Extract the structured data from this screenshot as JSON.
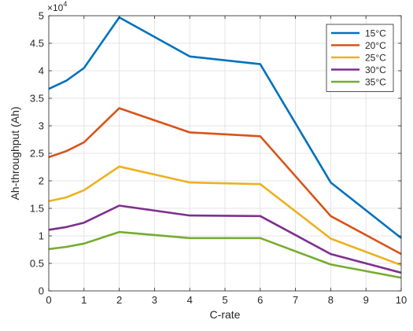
{
  "chart_data": {
    "type": "line",
    "title": "",
    "xlabel": "C-rate",
    "ylabel": "Ah-throughput (Ah)",
    "y_exponent_base": "×10",
    "y_exponent_power": "4",
    "xlim": [
      0,
      10
    ],
    "ylim": [
      0,
      5
    ],
    "x_ticks": [
      0,
      1,
      2,
      3,
      4,
      5,
      6,
      7,
      8,
      9,
      10
    ],
    "y_ticks": [
      0,
      0.5,
      1,
      1.5,
      2,
      2.5,
      3,
      3.5,
      4,
      4.5,
      5
    ],
    "y_tick_labels": [
      "0",
      "0.5",
      "1",
      "1.5",
      "2",
      "2.5",
      "3",
      "3.5",
      "4",
      "4.5",
      "5"
    ],
    "grid": true,
    "box": true,
    "legend_position": "top-right",
    "x": [
      0,
      0.5,
      1,
      2,
      4,
      6,
      8,
      10
    ],
    "series": [
      {
        "name": "15°C",
        "color": "#0072BD",
        "values": [
          3.67,
          3.82,
          4.05,
          4.97,
          4.26,
          4.12,
          1.97,
          0.96
        ]
      },
      {
        "name": "20°C",
        "color": "#D95319",
        "values": [
          2.43,
          2.54,
          2.7,
          3.32,
          2.88,
          2.81,
          1.36,
          0.67
        ]
      },
      {
        "name": "25°C",
        "color": "#EDB120",
        "values": [
          1.63,
          1.7,
          1.83,
          2.26,
          1.97,
          1.94,
          0.95,
          0.47
        ]
      },
      {
        "name": "30°C",
        "color": "#7E2F8E",
        "values": [
          1.11,
          1.16,
          1.24,
          1.55,
          1.37,
          1.36,
          0.67,
          0.33
        ]
      },
      {
        "name": "35°C",
        "color": "#77AC30",
        "values": [
          0.76,
          0.8,
          0.86,
          1.07,
          0.96,
          0.96,
          0.48,
          0.24
        ]
      }
    ]
  }
}
